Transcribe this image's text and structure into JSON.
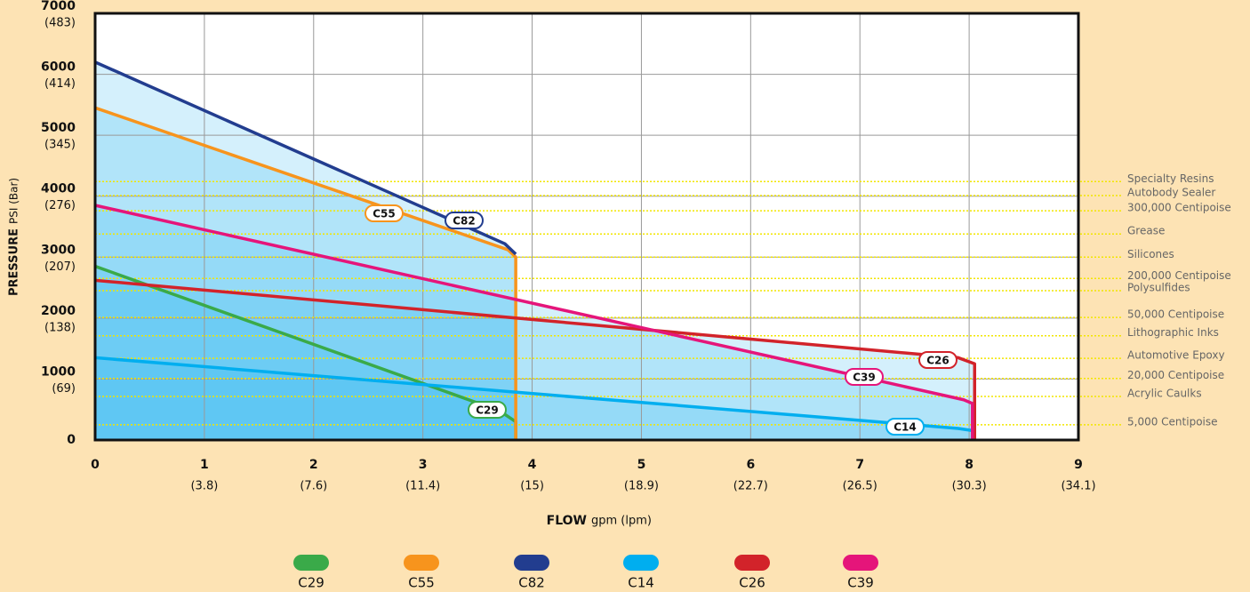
{
  "chart_data": {
    "type": "line",
    "x_label": "FLOW",
    "x_label_unit": "gpm (lpm)",
    "y_label": "PRESSURE",
    "y_label_unit": "PSI (Bar)",
    "xlim": [
      0,
      9
    ],
    "xticks": [
      0,
      1,
      2,
      3,
      4,
      5,
      6,
      7,
      8,
      9
    ],
    "xtick_sublabels": [
      null,
      "(3.8)",
      "(7.6)",
      "(11.4)",
      "(15)",
      "(18.9)",
      "(22.7)",
      "(26.5)",
      "(30.3)",
      "(34.1)"
    ],
    "ylim": [
      0,
      7000
    ],
    "yticks": [
      0,
      1000,
      2000,
      3000,
      4000,
      5000,
      6000,
      7000
    ],
    "ytick_sublabels": [
      null,
      "(69)",
      "(138)",
      "(207)",
      "(276)",
      "(345)",
      "(414)",
      "(483)"
    ],
    "grid": true,
    "area_color": "#29b6f0",
    "series": [
      {
        "name": "C29",
        "color": "#3aaa49",
        "x": [
          0,
          3.7,
          3.85,
          3.85
        ],
        "values": [
          2850,
          480,
          300,
          0
        ]
      },
      {
        "name": "C55",
        "color": "#f7941d",
        "x": [
          0,
          3.78,
          3.85,
          3.85
        ],
        "values": [
          5450,
          3120,
          3000,
          0
        ]
      },
      {
        "name": "C82",
        "color": "#223d8f",
        "x": [
          0,
          3.75,
          3.85
        ],
        "values": [
          6200,
          3220,
          3050
        ]
      },
      {
        "name": "C14",
        "color": "#00aeef",
        "x": [
          0,
          7.9,
          8.05,
          8.05
        ],
        "values": [
          1350,
          190,
          150,
          0
        ]
      },
      {
        "name": "C26",
        "color": "#d2232a",
        "x": [
          0,
          7.9,
          8.05,
          8.05
        ],
        "values": [
          2620,
          1350,
          1250,
          0
        ]
      },
      {
        "name": "C39",
        "color": "#e5157a",
        "x": [
          0,
          7.95,
          8.03,
          8.03
        ],
        "values": [
          3850,
          660,
          600,
          0
        ]
      }
    ],
    "reference_lines": [
      {
        "label": "Specialty Resins",
        "value": 4240
      },
      {
        "label": "Autobody Sealer",
        "value": 4010
      },
      {
        "label": "300,000 Centipoise",
        "value": 3760
      },
      {
        "label": "Grease",
        "value": 3380
      },
      {
        "label": "Silicones",
        "value": 3000
      },
      {
        "label": "200,000 Centipoise",
        "value": 2650
      },
      {
        "label": "Polysulfides",
        "value": 2450
      },
      {
        "label": "50,000 Centipoise",
        "value": 2010
      },
      {
        "label": "Lithographic Inks",
        "value": 1710
      },
      {
        "label": "Automotive Epoxy",
        "value": 1340
      },
      {
        "label": "20,000 Centipoise",
        "value": 1010
      },
      {
        "label": "Acrylic Caulks",
        "value": 715
      },
      {
        "label": "5,000 Centipoise",
        "value": 250
      }
    ],
    "reference_color": "#f2e600"
  }
}
